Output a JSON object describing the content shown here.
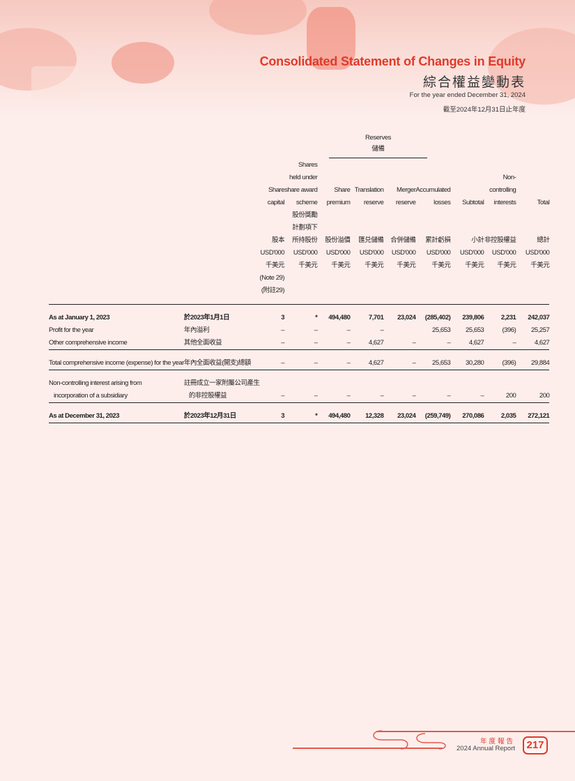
{
  "header": {
    "title": "Consolidated Statement of Changes in Equity",
    "title_zh": "綜合權益變動表",
    "period": "For the year ended December 31, 2024",
    "period_zh": "截至2024年12月31日止年度"
  },
  "reserves": {
    "en": "Reserves",
    "zh": "儲備"
  },
  "columns": [
    {
      "en": [
        "Share",
        "capital"
      ],
      "zh": [
        "股本"
      ],
      "units": [
        "USD'000",
        "千美元",
        "(Note 29)",
        "(附註29)"
      ]
    },
    {
      "en": [
        "Shares",
        "held under",
        "share award",
        "scheme"
      ],
      "zh": [
        "股份獎勵",
        "計劃項下",
        "所持股份"
      ],
      "units": [
        "USD'000",
        "千美元"
      ]
    },
    {
      "en": [
        "Share",
        "premium"
      ],
      "zh": [
        "股份溢價"
      ],
      "units": [
        "USD'000",
        "千美元"
      ]
    },
    {
      "en": [
        "Translation",
        "reserve"
      ],
      "zh": [
        "匯兑儲備"
      ],
      "units": [
        "USD'000",
        "千美元"
      ]
    },
    {
      "en": [
        "Merger",
        "reserve"
      ],
      "zh": [
        "合併儲備"
      ],
      "units": [
        "USD'000",
        "千美元"
      ]
    },
    {
      "en": [
        "Accumulated",
        "losses"
      ],
      "zh": [
        "累計虧損"
      ],
      "units": [
        "USD'000",
        "千美元"
      ]
    },
    {
      "en": [
        "Subtotal"
      ],
      "zh": [
        "小計"
      ],
      "units": [
        "USD'000",
        "千美元"
      ]
    },
    {
      "en": [
        "Non-",
        "controlling",
        "interests"
      ],
      "zh": [
        "非控股權益"
      ],
      "units": [
        "USD'000",
        "千美元"
      ]
    },
    {
      "en": [
        "Total"
      ],
      "zh": [
        "總計"
      ],
      "units": [
        "USD'000",
        "千美元"
      ]
    }
  ],
  "rows": [
    {
      "en": "As at January 1, 2023",
      "zh": "於2023年1月1日",
      "values": [
        "3",
        "*",
        "494,480",
        "7,701",
        "23,024",
        "(285,402)",
        "239,806",
        "2,231",
        "242,037"
      ]
    },
    {
      "en": "Profit for the year",
      "zh": "年內溢利",
      "values": [
        "–",
        "–",
        "–",
        "–",
        "",
        "25,653",
        "25,653",
        "(396)",
        "25,257"
      ]
    },
    {
      "en": "Other comprehensive income",
      "zh": "其他全面收益",
      "values": [
        "–",
        "–",
        "–",
        "4,627",
        "–",
        "–",
        "4,627",
        "–",
        "4,627"
      ]
    },
    {
      "en": "Total comprehensive income (expense) for the year",
      "zh": "年內全面收益(開支)總額",
      "values": [
        "–",
        "–",
        "–",
        "4,627",
        "–",
        "25,653",
        "30,280",
        "(396)",
        "29,884"
      ]
    },
    {
      "en": "Non-controlling interest arising from",
      "zh": "註冊成立一家附屬公司產生",
      "en2": "incorporation of a subsidiary",
      "zh2": "的非控股權益",
      "values": [
        "–",
        "–",
        "–",
        "–",
        "–",
        "–",
        "–",
        "200",
        "200"
      ]
    },
    {
      "en": "As at December 31, 2023",
      "zh": "於2023年12月31日",
      "values": [
        "3",
        "*",
        "494,480",
        "12,328",
        "23,024",
        "(259,749)",
        "270,086",
        "2,035",
        "272,121"
      ]
    }
  ],
  "footer": {
    "report_zh": "年度報告",
    "report_en": "2024  Annual Report",
    "page": "217"
  }
}
